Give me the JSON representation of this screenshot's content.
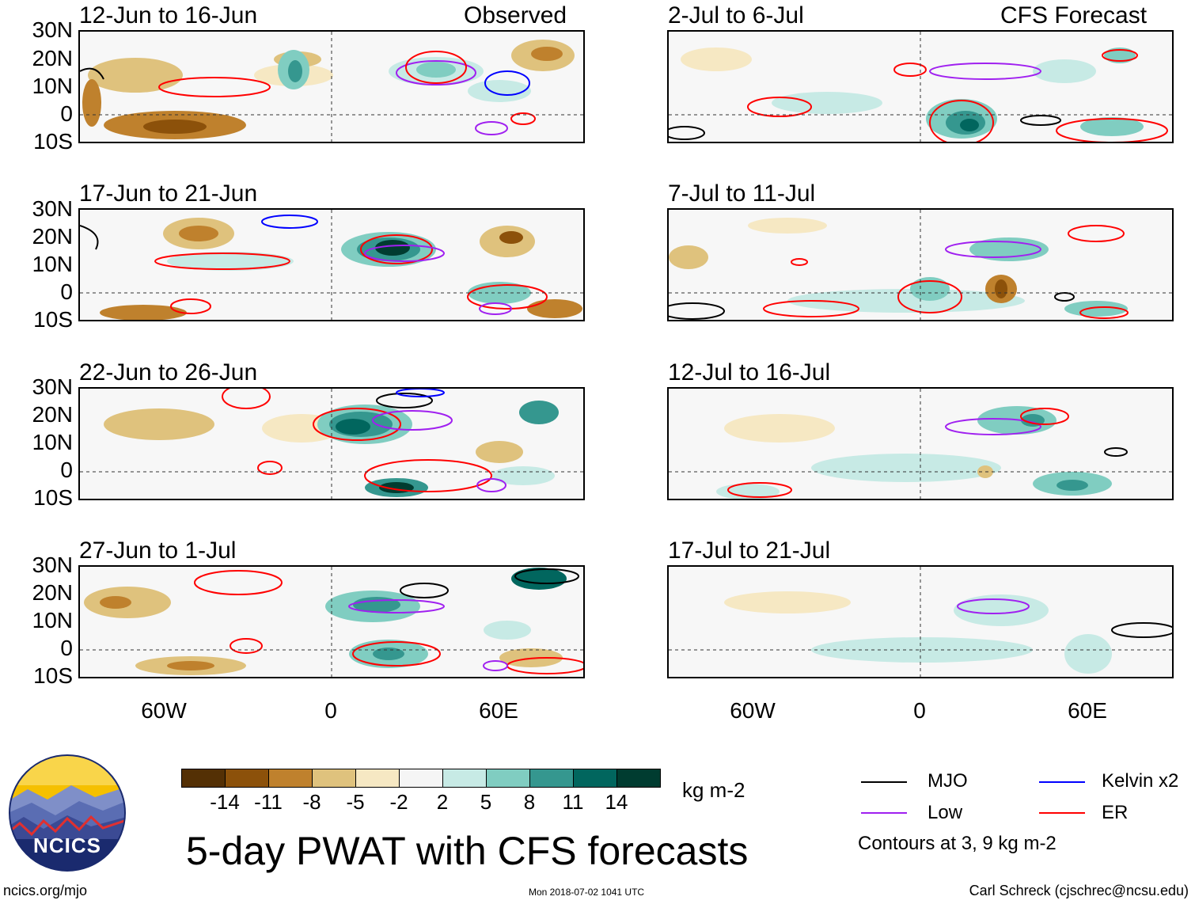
{
  "lat_labels": [
    "30N",
    "20N",
    "10N",
    "0",
    "10S"
  ],
  "lon_labels": [
    "60W",
    "0",
    "60E"
  ],
  "columns": [
    {
      "header": "Observed",
      "panels": [
        {
          "date_range": "12-Jun to 16-Jun"
        },
        {
          "date_range": "17-Jun to 21-Jun"
        },
        {
          "date_range": "22-Jun to 26-Jun"
        },
        {
          "date_range": "27-Jun to 1-Jul"
        }
      ]
    },
    {
      "header": "CFS Forecast",
      "panels": [
        {
          "date_range": "2-Jul to 6-Jul"
        },
        {
          "date_range": "7-Jul to 11-Jul"
        },
        {
          "date_range": "12-Jul to 16-Jul"
        },
        {
          "date_range": "17-Jul to 21-Jul"
        }
      ]
    }
  ],
  "colorbar": {
    "units": "kg m-2",
    "ticks": [
      "-14",
      "-11",
      "-8",
      "-5",
      "-2",
      "2",
      "5",
      "8",
      "11",
      "14"
    ],
    "colors": [
      "#543005",
      "#8c510a",
      "#bf812d",
      "#dfc27d",
      "#f6e8c3",
      "#f5f5f5",
      "#c7eae5",
      "#80cdc1",
      "#35978f",
      "#01665e",
      "#003c30"
    ]
  },
  "legend": {
    "items": [
      {
        "label": "MJO",
        "color": "#000000"
      },
      {
        "label": "Kelvin x2",
        "color": "#0000ff"
      },
      {
        "label": "Low",
        "color": "#a020f0"
      },
      {
        "label": "ER",
        "color": "#ff0000"
      }
    ],
    "note": "Contours at 3, 9 kg m-2"
  },
  "logo": {
    "text": "NCICS"
  },
  "title": "5-day PWAT with CFS forecasts",
  "footer": {
    "left": "ncics.org/mjo",
    "center": "Mon 2018-07-02 1041 UTC",
    "right": "Carl Schreck (cjschrec@ncsu.edu)"
  }
}
